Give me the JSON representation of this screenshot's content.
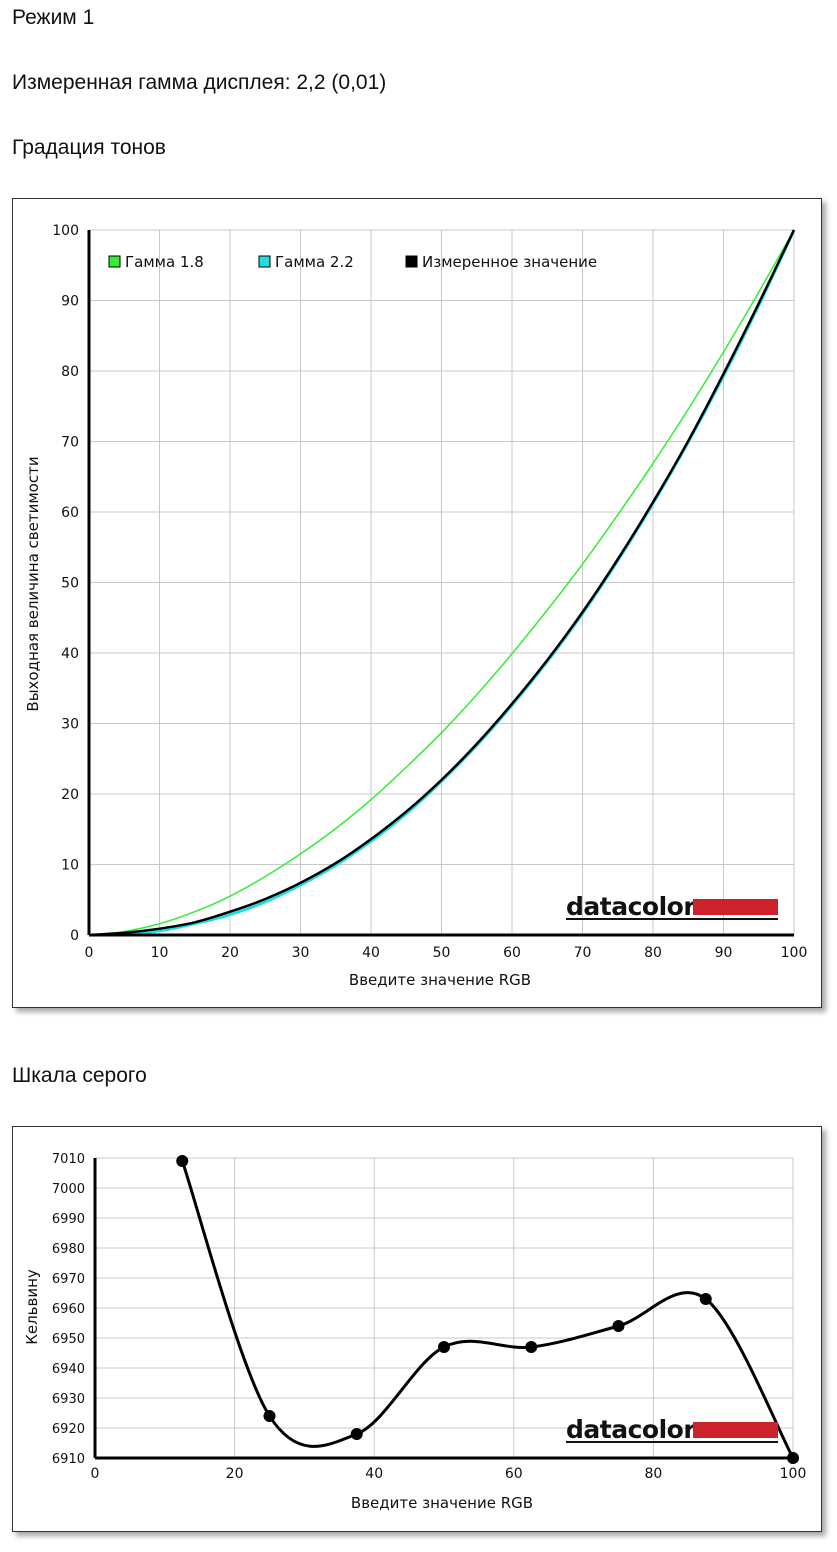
{
  "page": {
    "mode_title": "Режим 1",
    "gamma_line": "Измеренная гамма дисплея: 2,2 (0,01)",
    "tone_section_title": "Градация тонов",
    "grey_section_title": "Шкала серого"
  },
  "colors": {
    "gamma18": "#33ee33",
    "gamma22": "#22dddd",
    "measured": "#000000",
    "brand_red": "#cc2229"
  },
  "brand": {
    "logo_text": "datacolor"
  },
  "chart_data": [
    {
      "type": "line",
      "xlabel": "Введите значение RGB",
      "ylabel": "Выходная величина светимости",
      "xlim": [
        0,
        100
      ],
      "ylim": [
        0,
        100
      ],
      "xticks": [
        0,
        10,
        20,
        30,
        40,
        50,
        60,
        70,
        80,
        90,
        100
      ],
      "yticks": [
        0,
        10,
        20,
        30,
        40,
        50,
        60,
        70,
        80,
        90,
        100
      ],
      "grid": true,
      "legend_position": "top-left",
      "x": [
        0,
        5,
        10,
        15,
        20,
        25,
        30,
        35,
        40,
        45,
        50,
        55,
        60,
        65,
        70,
        75,
        80,
        85,
        90,
        95,
        100
      ],
      "series": [
        {
          "name": "Гамма 1.8",
          "values": [
            0,
            0.5,
            1.6,
            3.3,
            5.5,
            8.3,
            11.5,
            15.1,
            19.2,
            23.8,
            28.7,
            34.1,
            39.9,
            46.1,
            52.6,
            59.6,
            66.9,
            74.6,
            82.7,
            91.2,
            100
          ]
        },
        {
          "name": "Гамма 2.2",
          "values": [
            0,
            0.1,
            0.6,
            1.6,
            2.9,
            4.7,
            7.1,
            9.9,
            13.3,
            17.2,
            21.8,
            26.9,
            32.6,
            38.8,
            45.6,
            53.1,
            61.2,
            69.9,
            79.3,
            89.3,
            100
          ]
        },
        {
          "name": "Измеренное значение",
          "values": [
            0,
            0.3,
            0.9,
            1.8,
            3.3,
            5.1,
            7.4,
            10.2,
            13.6,
            17.5,
            22.0,
            27.1,
            32.8,
            39.0,
            45.8,
            53.3,
            61.4,
            70.1,
            79.6,
            89.6,
            100
          ]
        }
      ]
    },
    {
      "type": "line",
      "xlabel": "Введите значение RGB",
      "ylabel": "Кельвину",
      "xlim": [
        0,
        100
      ],
      "ylim": [
        6910,
        7010
      ],
      "xticks": [
        0,
        20,
        40,
        60,
        80,
        100
      ],
      "yticks": [
        6910,
        6920,
        6930,
        6940,
        6950,
        6960,
        6970,
        6980,
        6990,
        7000,
        7010
      ],
      "grid": true,
      "x": [
        12.5,
        25,
        37.5,
        50,
        62.5,
        75,
        87.5,
        100
      ],
      "values": [
        7009,
        6924,
        6918,
        6947,
        6947,
        6954,
        6963,
        6910
      ]
    }
  ]
}
